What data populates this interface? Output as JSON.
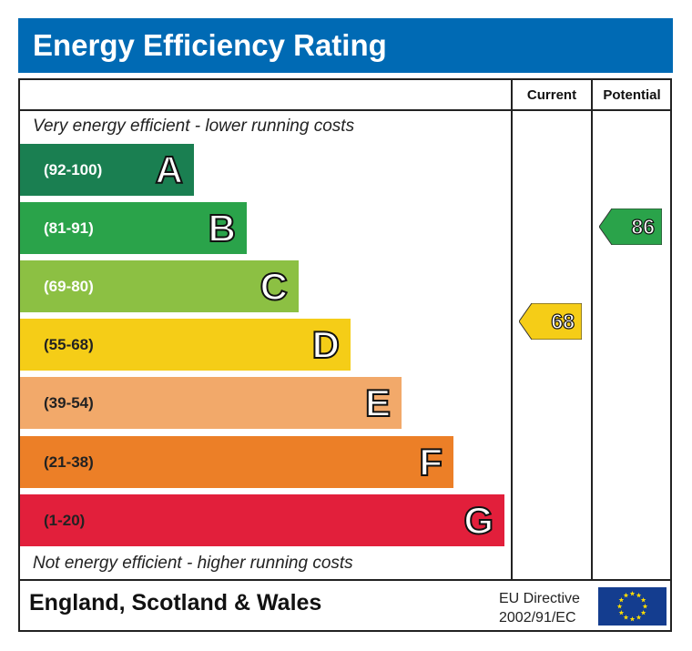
{
  "chart_data": {
    "type": "bar",
    "title": "Energy Efficiency Rating",
    "columns": [
      "Current",
      "Potential"
    ],
    "top_note": "Very energy efficient - lower running costs",
    "bottom_note": "Not energy efficient - higher running costs",
    "bands": [
      {
        "letter": "A",
        "range": "(92-100)",
        "color": "#1a7f51"
      },
      {
        "letter": "B",
        "range": "(81-91)",
        "color": "#2aa34a"
      },
      {
        "letter": "C",
        "range": "(69-80)",
        "color": "#8cc043"
      },
      {
        "letter": "D",
        "range": "(55-68)",
        "color": "#f5cd17"
      },
      {
        "letter": "E",
        "range": "(39-54)",
        "color": "#f2a96a"
      },
      {
        "letter": "F",
        "range": "(21-38)",
        "color": "#ec7f27"
      },
      {
        "letter": "G",
        "range": "(1-20)",
        "color": "#e21f3b"
      }
    ],
    "current": {
      "value": "68",
      "band": "D",
      "color": "#f5cd17"
    },
    "potential": {
      "value": "86",
      "band": "B",
      "color": "#2aa34a"
    }
  },
  "footer": {
    "region": "England, Scotland & Wales",
    "directive_line1": "EU Directive",
    "directive_line2": "2002/91/EC",
    "flag": "eu-flag-icon"
  }
}
